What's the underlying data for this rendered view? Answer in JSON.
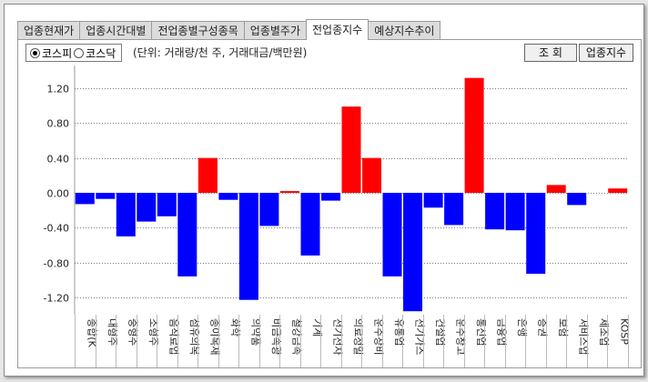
{
  "tabs": [
    {
      "label": "업종현재가",
      "active": false
    },
    {
      "label": "업종시간대별",
      "active": false
    },
    {
      "label": "전업종별구성종목",
      "active": false
    },
    {
      "label": "업종별주가",
      "active": false
    },
    {
      "label": "전업종지수",
      "active": true
    },
    {
      "label": "예상지수추이",
      "active": false
    }
  ],
  "toolbar": {
    "radio_kospi": "코스피",
    "radio_kosdaq": "코스닥",
    "selected": "kospi",
    "unit_note": "(단위: 거래량/천 주, 거래대금/백만원)",
    "query_button": "조 회",
    "index_button": "업종지수"
  },
  "colors": {
    "positive": "#ff0000",
    "negative": "#0000ff",
    "grid": "#808080"
  },
  "chart_data": {
    "type": "bar",
    "categories": [
      "종합(KOSPI)",
      "대형주",
      "중형주",
      "소형주",
      "음식료업",
      "섬유의복",
      "종이목재",
      "화학",
      "의약품",
      "비금속광물",
      "철강금속",
      "기계",
      "전기전자",
      "의료정밀",
      "운수장비",
      "유통업",
      "전기가스업",
      "건설업",
      "운수창고",
      "통신업",
      "금융업",
      "은행",
      "증권",
      "보험",
      "서비스업",
      "제조업",
      "KOSP"
    ],
    "tick_labels": [
      "종합(K",
      "대형주",
      "중형주",
      "소형주",
      "음식료업",
      "섬유의복",
      "종이목재",
      "화학",
      "의약품",
      "비금속광",
      "철강금속",
      "기계",
      "전기전자",
      "의료정밀",
      "운수장비",
      "유통업",
      "전기가스",
      "건설업",
      "운수창고",
      "통신업",
      "금융업",
      "은행",
      "증권",
      "보험",
      "서비스업",
      "제조업",
      "KOSP"
    ],
    "values": [
      -0.13,
      -0.07,
      -0.5,
      -0.33,
      -0.27,
      -0.96,
      0.4,
      -0.08,
      -1.23,
      -0.38,
      0.02,
      -0.72,
      -0.09,
      0.99,
      0.4,
      -0.96,
      -1.36,
      -0.17,
      -0.37,
      1.32,
      -0.42,
      -0.43,
      -0.93,
      0.09,
      -0.14,
      0.0,
      0.05
    ],
    "ylim": [
      -1.4,
      1.4
    ],
    "yticks": [
      "1.20",
      "0.80",
      "0.40",
      "0.00",
      "-0.40",
      "-0.80",
      "-1.20"
    ],
    "ytick_values": [
      1.2,
      0.8,
      0.4,
      0.0,
      -0.4,
      -0.8,
      -1.2
    ],
    "grid": true
  }
}
